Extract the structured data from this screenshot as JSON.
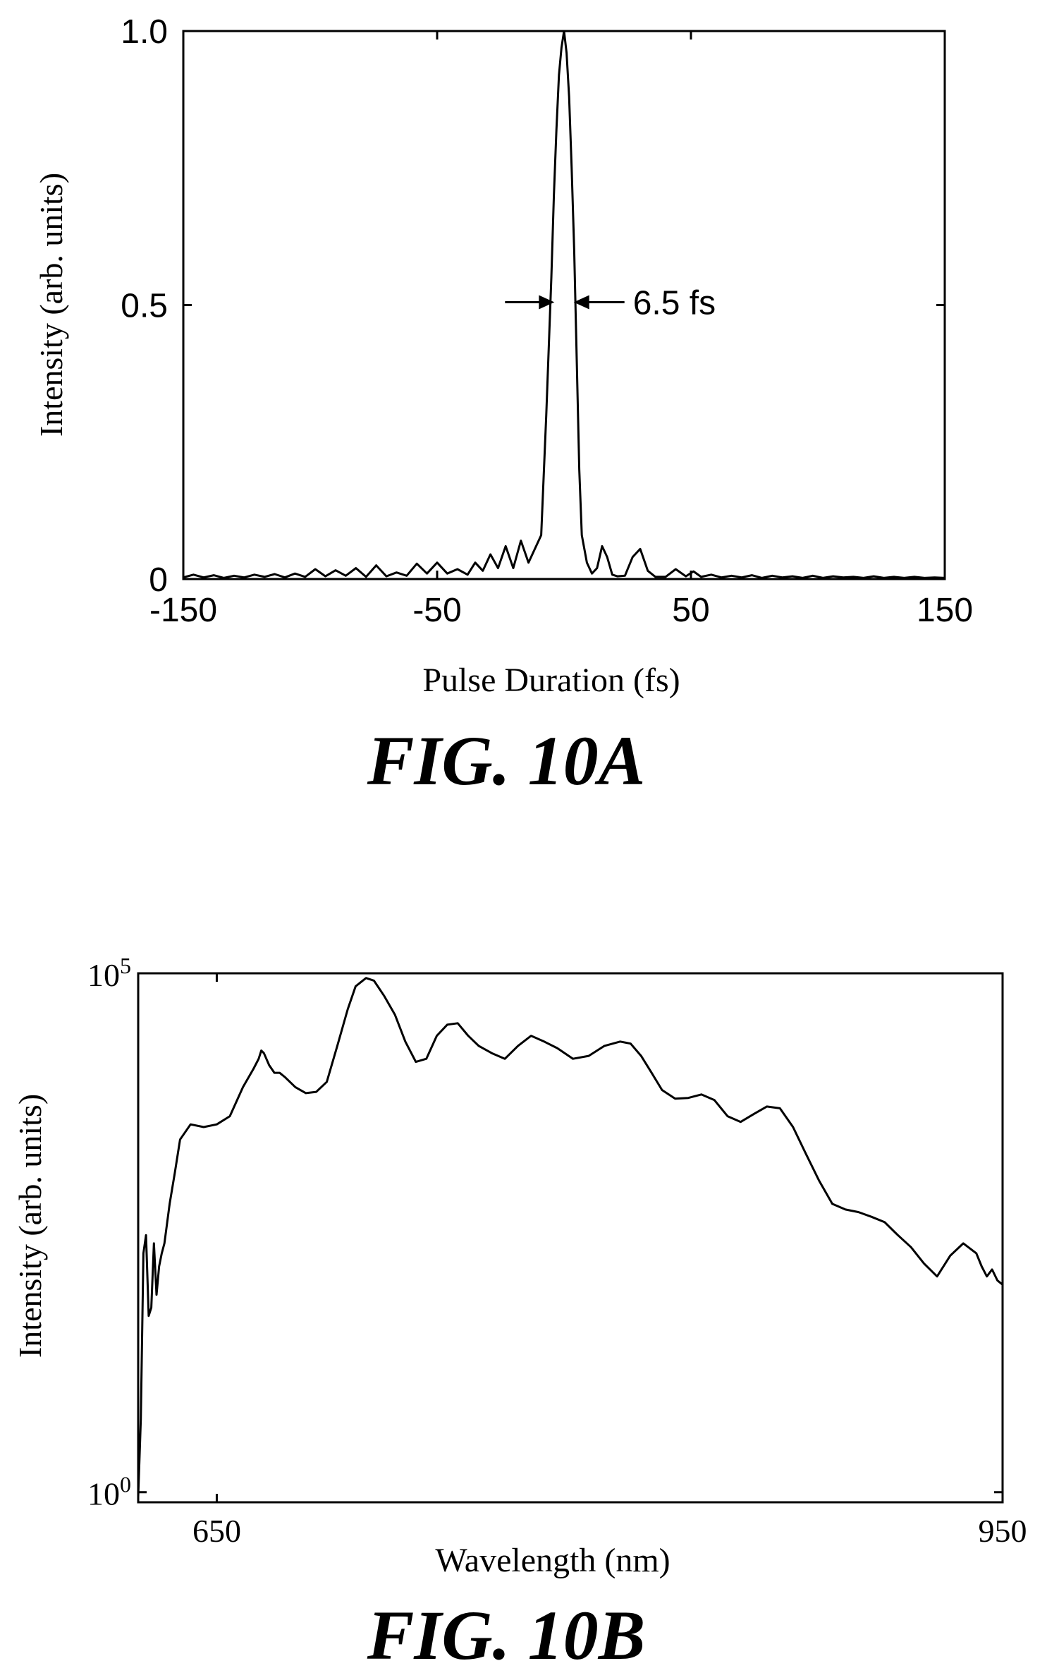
{
  "chart_data": [
    {
      "type": "line",
      "ylabel": "Intensity (arb. units)",
      "xlabel": "Pulse Duration (fs)",
      "xlim": [
        -150,
        150
      ],
      "ylim": [
        0,
        1.0
      ],
      "xticks": [
        -150,
        -50,
        50,
        150
      ],
      "xtick_labels": [
        "-150",
        "-50",
        "50",
        "150"
      ],
      "yticks": [
        0,
        0.5,
        1.0
      ],
      "ytick_labels": [
        "0",
        "0.5",
        "1.0"
      ],
      "grid": false,
      "annotation": {
        "text": "6.5 fs",
        "x_left": -3.25,
        "x_right": 3.25,
        "y": 0.5
      },
      "caption": "FIG. 10A",
      "series": [
        {
          "x": [
            -150,
            -146,
            -142,
            -138,
            -134,
            -130,
            -126,
            -122,
            -118,
            -114,
            -110,
            -106,
            -102,
            -98,
            -94,
            -90,
            -86,
            -82,
            -78,
            -74,
            -70,
            -66,
            -62,
            -58,
            -54,
            -50,
            -46,
            -42,
            -38,
            -35,
            -32,
            -29,
            -26,
            -23,
            -20,
            -17,
            -14,
            -11,
            -9,
            -7,
            -5,
            -4,
            -3,
            -2,
            -1,
            0,
            1,
            2,
            3,
            4,
            5,
            6,
            7,
            9,
            11,
            13,
            15,
            17,
            19,
            21,
            24,
            27,
            30,
            33,
            36,
            40,
            44,
            48,
            51,
            54,
            58,
            62,
            66,
            70,
            74,
            78,
            82,
            86,
            90,
            94,
            98,
            102,
            106,
            110,
            114,
            118,
            122,
            126,
            130,
            134,
            138,
            142,
            146,
            150
          ],
          "values": [
            0.003,
            0.008,
            0.003,
            0.007,
            0.002,
            0.006,
            0.003,
            0.008,
            0.004,
            0.009,
            0.003,
            0.01,
            0.004,
            0.018,
            0.005,
            0.016,
            0.006,
            0.02,
            0.004,
            0.025,
            0.005,
            0.012,
            0.006,
            0.028,
            0.01,
            0.03,
            0.01,
            0.018,
            0.008,
            0.03,
            0.015,
            0.045,
            0.02,
            0.06,
            0.02,
            0.07,
            0.03,
            0.06,
            0.08,
            0.3,
            0.55,
            0.7,
            0.82,
            0.92,
            0.97,
            1.0,
            0.96,
            0.88,
            0.75,
            0.6,
            0.4,
            0.2,
            0.08,
            0.03,
            0.01,
            0.02,
            0.06,
            0.04,
            0.008,
            0.005,
            0.006,
            0.04,
            0.055,
            0.015,
            0.004,
            0.004,
            0.018,
            0.005,
            0.014,
            0.004,
            0.008,
            0.003,
            0.006,
            0.003,
            0.007,
            0.002,
            0.006,
            0.003,
            0.005,
            0.002,
            0.006,
            0.002,
            0.005,
            0.003,
            0.004,
            0.002,
            0.005,
            0.002,
            0.004,
            0.002,
            0.004,
            0.002,
            0.003,
            0.002
          ]
        }
      ]
    },
    {
      "type": "line",
      "ylabel": "Intensity (arb. units)",
      "xlabel": "Wavelength (nm)",
      "xlim": [
        620,
        950
      ],
      "ylim": [
        0.8,
        100000
      ],
      "yscale": "log",
      "xticks": [
        650,
        950
      ],
      "xtick_labels": [
        "650",
        "950"
      ],
      "yticks": [
        1,
        100000
      ],
      "ytick_labels": [
        {
          "base": "10",
          "exp": "0"
        },
        {
          "base": "10",
          "exp": "5"
        }
      ],
      "grid": false,
      "caption": "FIG. 10B",
      "series": [
        {
          "x": [
            620,
            621,
            622,
            623,
            624,
            625,
            626,
            627,
            628,
            629,
            630,
            632,
            634,
            636,
            640,
            645,
            650,
            655,
            660,
            664,
            666,
            667,
            668,
            670,
            672,
            674,
            676,
            680,
            684,
            688,
            692,
            696,
            700,
            703,
            707,
            710,
            714,
            718,
            722,
            726,
            730,
            734,
            738,
            742,
            746,
            750,
            755,
            760,
            765,
            770,
            775,
            780,
            786,
            792,
            798,
            804,
            808,
            812,
            816,
            820,
            825,
            830,
            835,
            840,
            845,
            850,
            855,
            860,
            865,
            870,
            875,
            880,
            885,
            890,
            895,
            900,
            905,
            910,
            915,
            920,
            925,
            930,
            935,
            940,
            942,
            944,
            946,
            948,
            950
          ],
          "values": [
            0.9,
            5,
            200,
            300,
            50,
            60,
            250,
            80,
            150,
            200,
            250,
            600,
            1200,
            2500,
            3500,
            3300,
            3500,
            4200,
            8000,
            12000,
            15000,
            18000,
            17000,
            13000,
            11000,
            11000,
            10000,
            8000,
            7000,
            7200,
            9000,
            20000,
            45000,
            75000,
            90000,
            85000,
            60000,
            40000,
            22000,
            14000,
            15000,
            25000,
            32000,
            33000,
            25000,
            20000,
            17000,
            15000,
            20000,
            25000,
            22000,
            19000,
            15000,
            16000,
            20000,
            22000,
            21000,
            16000,
            11000,
            7500,
            6200,
            6300,
            6800,
            6000,
            4200,
            3700,
            4400,
            5200,
            5000,
            3300,
            1800,
            1000,
            600,
            530,
            500,
            450,
            400,
            300,
            230,
            160,
            120,
            190,
            250,
            200,
            150,
            120,
            140,
            110,
            100
          ]
        }
      ]
    }
  ]
}
